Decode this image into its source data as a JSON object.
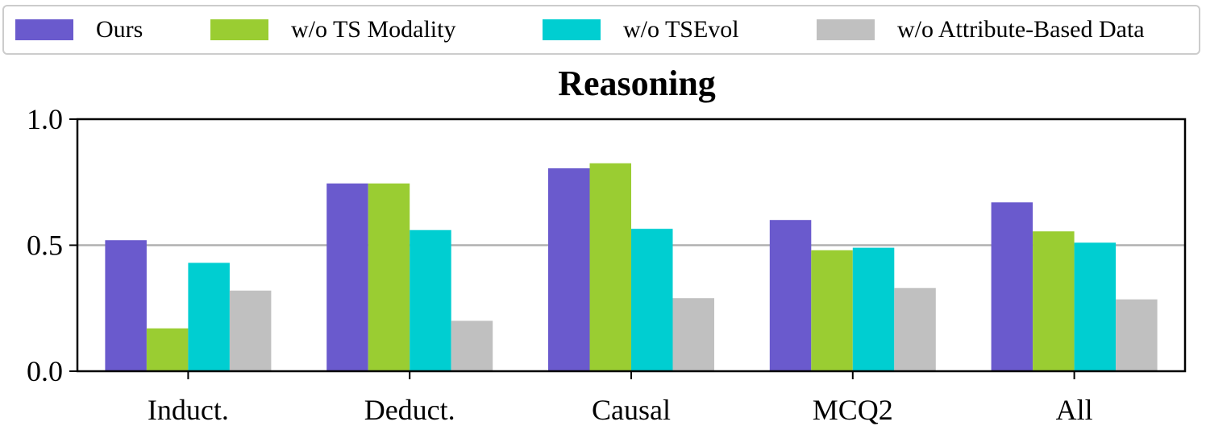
{
  "chart_data": {
    "type": "bar",
    "title": "Reasoning",
    "categories": [
      "Induct.",
      "Deduct.",
      "Causal",
      "MCQ2",
      "All"
    ],
    "series": [
      {
        "name": "Ours",
        "color": "#6a5acd",
        "values": [
          0.52,
          0.745,
          0.805,
          0.6,
          0.67
        ]
      },
      {
        "name": "w/o TS Modality",
        "color": "#9acd32",
        "values": [
          0.17,
          0.745,
          0.825,
          0.48,
          0.555
        ]
      },
      {
        "name": "w/o TSEvol",
        "color": "#00ced1",
        "values": [
          0.43,
          0.56,
          0.565,
          0.49,
          0.51
        ]
      },
      {
        "name": "w/o Attribute-Based Data",
        "color": "#c0c0c0",
        "values": [
          0.32,
          0.2,
          0.29,
          0.33,
          0.285
        ]
      }
    ],
    "ylim": [
      0.0,
      1.0
    ],
    "yticks": [
      "0.0",
      "0.5",
      "1.0"
    ],
    "reference_line": 0.5,
    "xlabel": "",
    "ylabel": "",
    "legend_position": "top"
  }
}
